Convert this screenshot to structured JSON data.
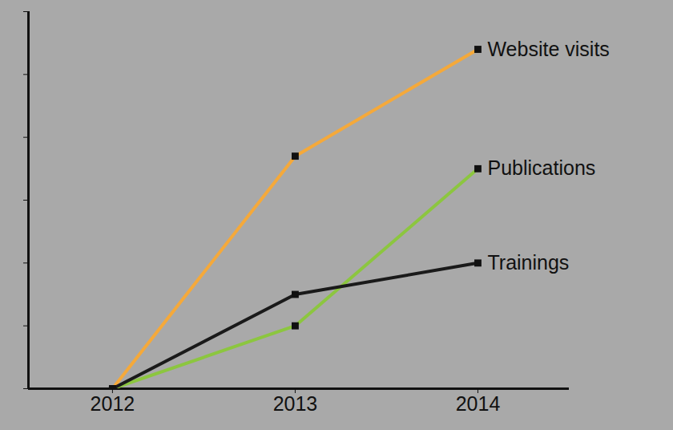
{
  "chart_data": {
    "type": "line",
    "x": [
      2012,
      2013,
      2014
    ],
    "series": [
      {
        "name": "Website visits",
        "color": "#f5a93a",
        "values": [
          0,
          3.7,
          5.4
        ]
      },
      {
        "name": "Publications",
        "color": "#8cc63f",
        "values": [
          0,
          1.0,
          3.5
        ]
      },
      {
        "name": "Trainings",
        "color": "#1a1a1a",
        "values": [
          0,
          1.5,
          2.0
        ]
      }
    ],
    "xlim": [
      2011.54,
      2014.5
    ],
    "xticks": [
      2012,
      2013,
      2014
    ],
    "ylim": [
      0,
      6
    ],
    "yticks": [
      0,
      1,
      2,
      3,
      4,
      5,
      6
    ],
    "tick_labels": "x",
    "marker": "square"
  }
}
